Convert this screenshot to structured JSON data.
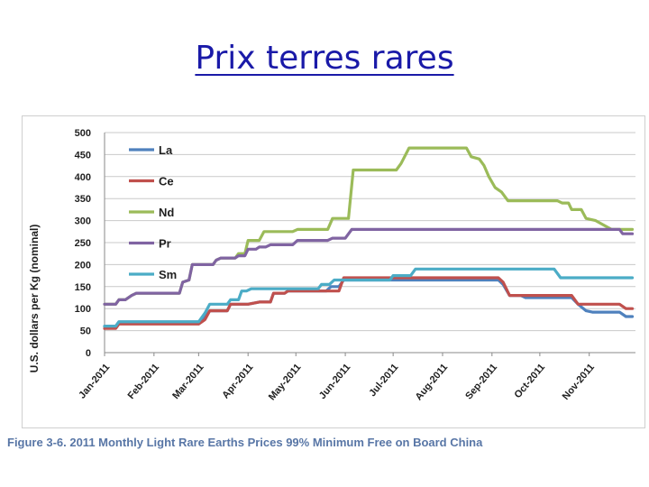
{
  "slide": {
    "title": "Prix terres rares",
    "caption": "Figure 3-6. 2011 Monthly Light Rare Earths Prices 99% Minimum Free on Board China"
  },
  "chart_data": {
    "type": "line",
    "title": "",
    "xlabel": "",
    "ylabel": "U.S. dollars per Kg (nominal)",
    "ylim": [
      0,
      500
    ],
    "yticks": [
      0,
      50,
      100,
      150,
      200,
      250,
      300,
      350,
      400,
      450,
      500
    ],
    "xlim": [
      "2011-01-01",
      "2011-11-30"
    ],
    "xticks": [
      {
        "date": "2011-01-01",
        "label": "Jan-2011"
      },
      {
        "date": "2011-02-01",
        "label": "Feb-2011"
      },
      {
        "date": "2011-03-01",
        "label": "Mar-2011"
      },
      {
        "date": "2011-04-01",
        "label": "Apr-2011"
      },
      {
        "date": "2011-05-01",
        "label": "May-2011"
      },
      {
        "date": "2011-06-01",
        "label": "Jun-2011"
      },
      {
        "date": "2011-07-01",
        "label": "Jul-2011"
      },
      {
        "date": "2011-08-01",
        "label": "Aug-2011"
      },
      {
        "date": "2011-09-01",
        "label": "Sep-2011"
      },
      {
        "date": "2011-10-01",
        "label": "Oct-2011"
      },
      {
        "date": "2011-11-01",
        "label": "Nov-2011"
      }
    ],
    "grid": true,
    "legend_position": "top-left",
    "series": [
      {
        "name": "La",
        "color": "#4f81bd",
        "points": [
          [
            "2011-01-01",
            60
          ],
          [
            "2011-01-08",
            60
          ],
          [
            "2011-01-10",
            70
          ],
          [
            "2011-03-01",
            70
          ],
          [
            "2011-03-05",
            80
          ],
          [
            "2011-03-08",
            95
          ],
          [
            "2011-03-14",
            95
          ],
          [
            "2011-03-19",
            95
          ],
          [
            "2011-03-21",
            110
          ],
          [
            "2011-04-01",
            110
          ],
          [
            "2011-04-08",
            115
          ],
          [
            "2011-04-15",
            115
          ],
          [
            "2011-04-17",
            135
          ],
          [
            "2011-04-24",
            135
          ],
          [
            "2011-04-26",
            140
          ],
          [
            "2011-05-05",
            140
          ],
          [
            "2011-05-12",
            140
          ],
          [
            "2011-05-20",
            140
          ],
          [
            "2011-05-23",
            150
          ],
          [
            "2011-05-28",
            150
          ],
          [
            "2011-05-31",
            165
          ],
          [
            "2011-09-05",
            165
          ],
          [
            "2011-09-08",
            155
          ],
          [
            "2011-09-12",
            130
          ],
          [
            "2011-09-19",
            130
          ],
          [
            "2011-09-22",
            125
          ],
          [
            "2011-10-21",
            125
          ],
          [
            "2011-10-25",
            110
          ],
          [
            "2011-10-30",
            95
          ],
          [
            "2011-11-03",
            92
          ],
          [
            "2011-11-20",
            92
          ],
          [
            "2011-11-24",
            82
          ],
          [
            "2011-11-28",
            82
          ]
        ]
      },
      {
        "name": "Ce",
        "color": "#c0504d",
        "points": [
          [
            "2011-01-01",
            55
          ],
          [
            "2011-01-08",
            55
          ],
          [
            "2011-01-10",
            65
          ],
          [
            "2011-03-01",
            65
          ],
          [
            "2011-03-05",
            75
          ],
          [
            "2011-03-08",
            95
          ],
          [
            "2011-03-19",
            95
          ],
          [
            "2011-03-21",
            110
          ],
          [
            "2011-04-01",
            110
          ],
          [
            "2011-04-08",
            115
          ],
          [
            "2011-04-15",
            115
          ],
          [
            "2011-04-17",
            135
          ],
          [
            "2011-04-24",
            135
          ],
          [
            "2011-04-26",
            140
          ],
          [
            "2011-05-28",
            140
          ],
          [
            "2011-05-31",
            170
          ],
          [
            "2011-09-05",
            170
          ],
          [
            "2011-09-08",
            160
          ],
          [
            "2011-09-12",
            130
          ],
          [
            "2011-10-21",
            130
          ],
          [
            "2011-10-25",
            110
          ],
          [
            "2011-11-20",
            110
          ],
          [
            "2011-11-24",
            100
          ],
          [
            "2011-11-28",
            100
          ]
        ]
      },
      {
        "name": "Nd",
        "color": "#9bbb59",
        "points": [
          [
            "2011-01-01",
            110
          ],
          [
            "2011-01-08",
            110
          ],
          [
            "2011-01-10",
            120
          ],
          [
            "2011-01-14",
            120
          ],
          [
            "2011-01-18",
            130
          ],
          [
            "2011-01-21",
            135
          ],
          [
            "2011-02-17",
            135
          ],
          [
            "2011-02-19",
            160
          ],
          [
            "2011-02-23",
            165
          ],
          [
            "2011-02-25",
            200
          ],
          [
            "2011-03-10",
            200
          ],
          [
            "2011-03-12",
            210
          ],
          [
            "2011-03-15",
            215
          ],
          [
            "2011-03-24",
            215
          ],
          [
            "2011-03-26",
            225
          ],
          [
            "2011-03-30",
            225
          ],
          [
            "2011-04-01",
            255
          ],
          [
            "2011-04-08",
            255
          ],
          [
            "2011-04-11",
            275
          ],
          [
            "2011-04-29",
            275
          ],
          [
            "2011-05-02",
            280
          ],
          [
            "2011-05-21",
            280
          ],
          [
            "2011-05-24",
            305
          ],
          [
            "2011-06-03",
            305
          ],
          [
            "2011-06-06",
            415
          ],
          [
            "2011-07-03",
            415
          ],
          [
            "2011-07-06",
            430
          ],
          [
            "2011-07-11",
            465
          ],
          [
            "2011-08-16",
            465
          ],
          [
            "2011-08-19",
            445
          ],
          [
            "2011-08-24",
            440
          ],
          [
            "2011-08-27",
            425
          ],
          [
            "2011-08-30",
            400
          ],
          [
            "2011-09-03",
            375
          ],
          [
            "2011-09-07",
            365
          ],
          [
            "2011-09-11",
            345
          ],
          [
            "2011-10-12",
            345
          ],
          [
            "2011-10-15",
            340
          ],
          [
            "2011-10-19",
            340
          ],
          [
            "2011-10-21",
            325
          ],
          [
            "2011-10-27",
            325
          ],
          [
            "2011-10-30",
            305
          ],
          [
            "2011-11-05",
            300
          ],
          [
            "2011-11-10",
            290
          ],
          [
            "2011-11-15",
            280
          ],
          [
            "2011-11-28",
            280
          ]
        ]
      },
      {
        "name": "Pr",
        "color": "#8064a2",
        "points": [
          [
            "2011-01-01",
            110
          ],
          [
            "2011-01-08",
            110
          ],
          [
            "2011-01-10",
            120
          ],
          [
            "2011-01-14",
            120
          ],
          [
            "2011-01-18",
            130
          ],
          [
            "2011-01-21",
            135
          ],
          [
            "2011-02-17",
            135
          ],
          [
            "2011-02-19",
            160
          ],
          [
            "2011-02-23",
            165
          ],
          [
            "2011-02-25",
            200
          ],
          [
            "2011-03-10",
            200
          ],
          [
            "2011-03-12",
            210
          ],
          [
            "2011-03-15",
            215
          ],
          [
            "2011-03-24",
            215
          ],
          [
            "2011-03-26",
            220
          ],
          [
            "2011-03-30",
            220
          ],
          [
            "2011-04-01",
            235
          ],
          [
            "2011-04-06",
            235
          ],
          [
            "2011-04-08",
            240
          ],
          [
            "2011-04-12",
            240
          ],
          [
            "2011-04-15",
            245
          ],
          [
            "2011-04-29",
            245
          ],
          [
            "2011-05-02",
            255
          ],
          [
            "2011-05-21",
            255
          ],
          [
            "2011-05-24",
            260
          ],
          [
            "2011-06-01",
            260
          ],
          [
            "2011-06-05",
            280
          ],
          [
            "2011-11-20",
            280
          ],
          [
            "2011-11-22",
            270
          ],
          [
            "2011-11-28",
            270
          ]
        ]
      },
      {
        "name": "Sm",
        "color": "#4bacc6",
        "points": [
          [
            "2011-01-01",
            60
          ],
          [
            "2011-01-08",
            60
          ],
          [
            "2011-01-10",
            70
          ],
          [
            "2011-03-01",
            70
          ],
          [
            "2011-03-05",
            90
          ],
          [
            "2011-03-08",
            110
          ],
          [
            "2011-03-19",
            110
          ],
          [
            "2011-03-21",
            120
          ],
          [
            "2011-03-26",
            120
          ],
          [
            "2011-03-28",
            140
          ],
          [
            "2011-03-31",
            140
          ],
          [
            "2011-04-03",
            145
          ],
          [
            "2011-05-15",
            145
          ],
          [
            "2011-05-17",
            155
          ],
          [
            "2011-05-22",
            155
          ],
          [
            "2011-05-25",
            165
          ],
          [
            "2011-06-29",
            165
          ],
          [
            "2011-07-01",
            175
          ],
          [
            "2011-07-12",
            175
          ],
          [
            "2011-07-15",
            190
          ],
          [
            "2011-10-10",
            190
          ],
          [
            "2011-10-14",
            170
          ],
          [
            "2011-11-28",
            170
          ]
        ]
      }
    ]
  }
}
